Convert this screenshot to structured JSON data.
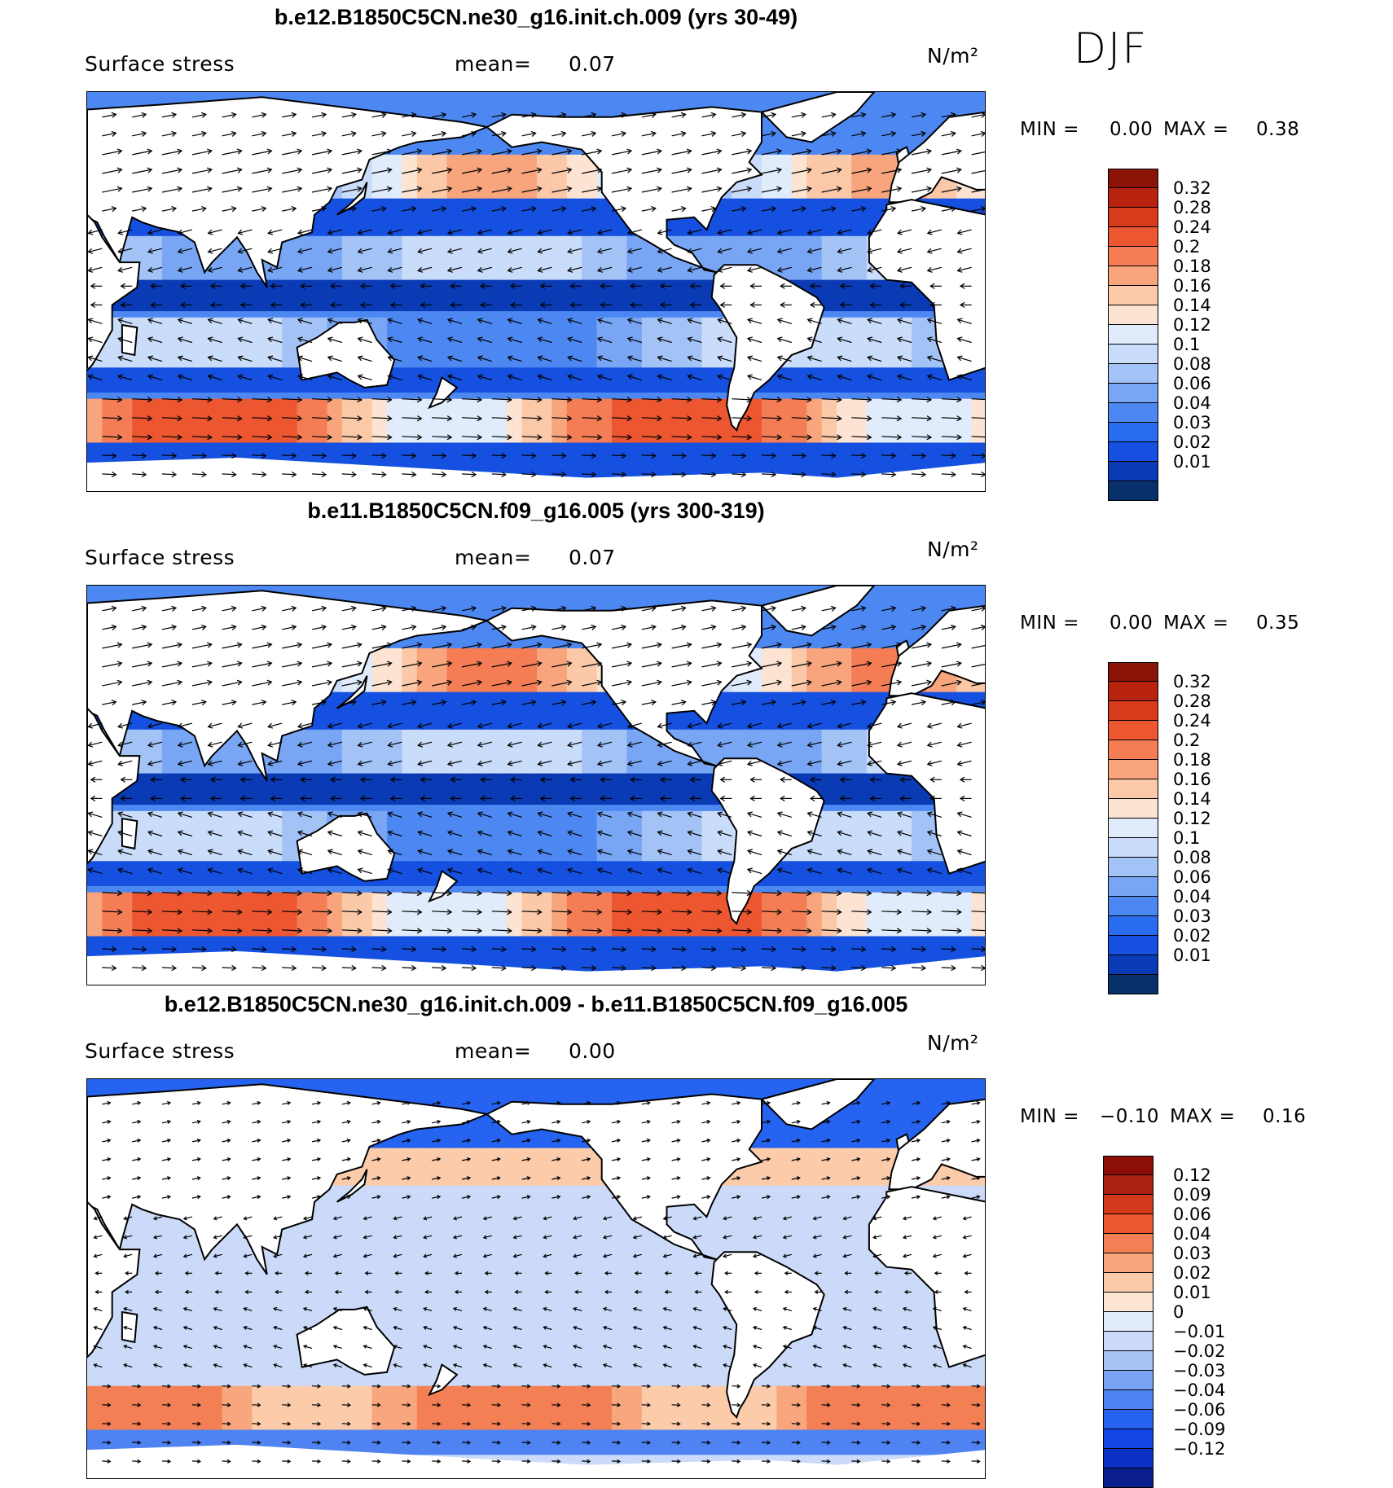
{
  "season": "DJF",
  "units": "N/m²",
  "var_label": "Surface stress",
  "mean_label": "mean=",
  "min_label": "MIN =",
  "max_label": "MAX =",
  "colors": {
    "abs_scale": [
      "#08306b",
      "#0a3bb5",
      "#1550e0",
      "#2a6cf0",
      "#4d88f2",
      "#78a6f5",
      "#a3c3f7",
      "#c9dcf9",
      "#e0ecfb",
      "#fde4d2",
      "#fbc8a8",
      "#f8a47c",
      "#f47d55",
      "#ec5630",
      "#d83a1c",
      "#b8230f",
      "#8b1206"
    ],
    "diff_scale": [
      "#0a1f8c",
      "#0b31c4",
      "#1247e6",
      "#2563f0",
      "#4f83f2",
      "#7ba3f4",
      "#a6c3f6",
      "#cadaf8",
      "#e2ecfb",
      "#fde6d4",
      "#fbcbaa",
      "#f8a67d",
      "#f37f55",
      "#eb572f",
      "#d23a1b",
      "#a9210f",
      "#8b0f06"
    ]
  },
  "chart_data": [
    {
      "type": "heatmap",
      "title": "b.e12.B1850C5CN.ne30_g16.init.ch.009 (yrs 30-49)",
      "subtitle": "Surface stress",
      "mean": "0.07",
      "units": "N/m²",
      "min": "0.00",
      "max": "0.38",
      "colorbar_labels": [
        "0.32",
        "0.28",
        "0.24",
        "0.2",
        "0.18",
        "0.16",
        "0.14",
        "0.12",
        "0.1",
        "0.08",
        "0.06",
        "0.04",
        "0.03",
        "0.02",
        "0.01"
      ],
      "xlim": [
        30,
        390
      ],
      "ylim": [
        -80,
        80
      ]
    },
    {
      "type": "heatmap",
      "title": "b.e11.B1850C5CN.f09_g16.005 (yrs 300-319)",
      "subtitle": "Surface stress",
      "mean": "0.07",
      "units": "N/m²",
      "min": "0.00",
      "max": "0.35",
      "colorbar_labels": [
        "0.32",
        "0.28",
        "0.24",
        "0.2",
        "0.18",
        "0.16",
        "0.14",
        "0.12",
        "0.1",
        "0.08",
        "0.06",
        "0.04",
        "0.03",
        "0.02",
        "0.01"
      ],
      "xlim": [
        30,
        390
      ],
      "ylim": [
        -80,
        80
      ]
    },
    {
      "type": "heatmap",
      "title": "b.e12.B1850C5CN.ne30_g16.init.ch.009 - b.e11.B1850C5CN.f09_g16.005",
      "subtitle": "Surface stress",
      "mean": "0.00",
      "units": "N/m²",
      "min": "−0.10",
      "max": "0.16",
      "colorbar_labels": [
        "0.12",
        "0.09",
        "0.06",
        "0.04",
        "0.03",
        "0.02",
        "0.01",
        "0",
        "−0.01",
        "−0.02",
        "−0.03",
        "−0.04",
        "−0.06",
        "−0.09",
        "−0.12"
      ],
      "xlim": [
        30,
        390
      ],
      "ylim": [
        -80,
        80
      ]
    }
  ]
}
